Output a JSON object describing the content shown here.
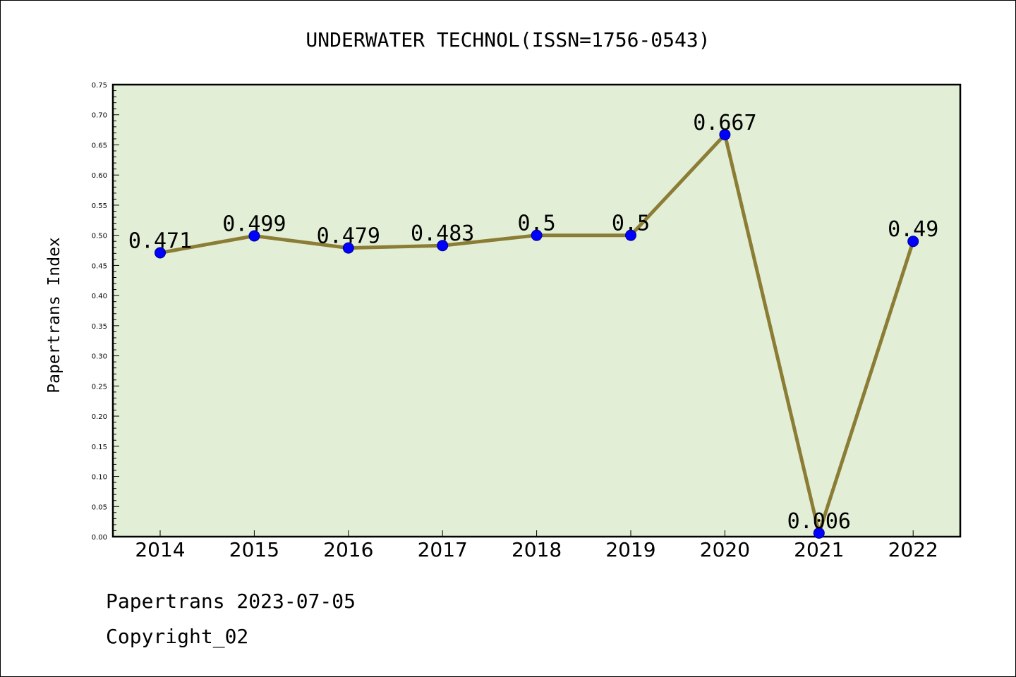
{
  "chart_data": {
    "type": "line",
    "title": "UNDERWATER TECHNOL(ISSN=1756-0543)",
    "xlabel": "",
    "ylabel": "Papertrans Index",
    "categories": [
      "2014",
      "2015",
      "2016",
      "2017",
      "2018",
      "2019",
      "2020",
      "2021",
      "2022"
    ],
    "series": [
      {
        "values": [
          0.471,
          0.499,
          0.479,
          0.483,
          0.5,
          0.5,
          0.667,
          0.006,
          0.49
        ],
        "data_labels": [
          "0.471",
          "0.499",
          "0.479",
          "0.483",
          "0.5",
          "0.5",
          "0.667",
          "0.006",
          "0.49"
        ]
      }
    ],
    "ylim": [
      0,
      0.75
    ],
    "yticks": [
      "0.00",
      "0.05",
      "0.10",
      "0.15",
      "0.20",
      "0.25",
      "0.30",
      "0.35",
      "0.40",
      "0.45",
      "0.50",
      "0.55",
      "0.60",
      "0.65",
      "0.70",
      "0.75"
    ],
    "grid": false,
    "colors": {
      "plot_background": "#e2efd6",
      "line": "#8b7d35",
      "marker": "#0000ff",
      "frame": "#000000"
    }
  },
  "footer": {
    "line1": "Papertrans 2023-07-05",
    "line2": "Copyright_02"
  }
}
